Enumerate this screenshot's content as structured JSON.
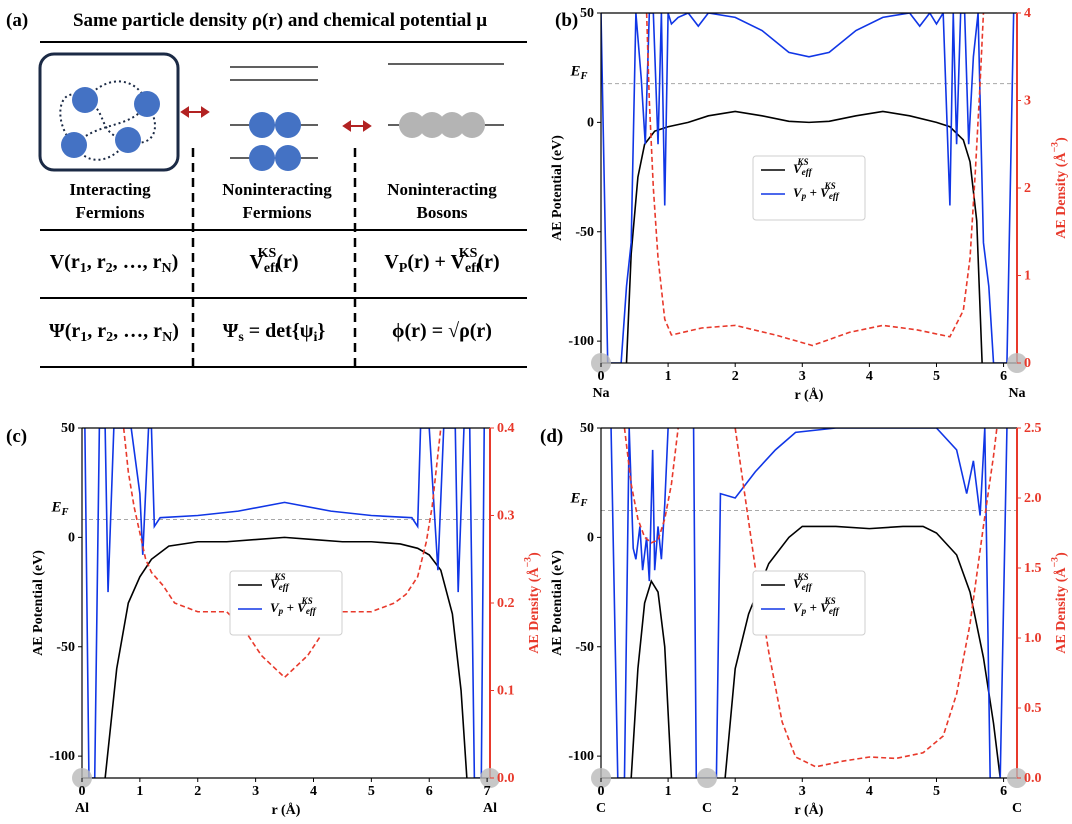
{
  "schematic": {
    "label": "(a)",
    "title": "Same particle density ρ(r) and chemical potential μ",
    "columns": [
      [
        "Interacting",
        "Fermions"
      ],
      [
        "Noninteracting",
        "Fermions"
      ],
      [
        "Noninteracting",
        "Bosons"
      ]
    ],
    "rows": [
      [
        "V(r_{1}, r_{2}, …, r_{N})",
        "V_{eff}^{KS}(r)",
        "V_{P}(r) + V_{eff}^{KS}(r)"
      ],
      [
        "Ψ(r_{1}, r_{2}, …, r_{N})",
        "Ψ_{s} = det{ψ_{i}}",
        "ϕ(r) = √ρ(r)"
      ]
    ]
  },
  "chart_data": [
    {
      "type": "line",
      "label": "(b)",
      "xlabel": "r (Å)",
      "ylabel": "AE Potential (eV)",
      "y2label": "AE Density (Å^{−3})",
      "xlim": [
        0,
        6.2
      ],
      "xticks": [
        0,
        1,
        2,
        3,
        4,
        5,
        6
      ],
      "ylim": [
        -110,
        50
      ],
      "yticks": [
        -100,
        -50,
        0,
        50
      ],
      "y2lim": [
        0,
        4
      ],
      "y2ticks": [
        0,
        1,
        2,
        3,
        4
      ],
      "y2color": "#e8392b",
      "fermi_level": {
        "label": "E_{F}",
        "value": 17.7
      },
      "atoms": [
        {
          "label": "Na",
          "x": 0
        },
        {
          "label": "Na",
          "x": 6.2
        }
      ],
      "legend": "center",
      "series": [
        {
          "name": "V_{eff}^{KS}",
          "color": "#000000",
          "x": [
            0.38,
            0.45,
            0.55,
            0.65,
            0.8,
            1.0,
            1.3,
            1.6,
            2.0,
            2.4,
            2.8,
            3.1,
            3.4,
            3.8,
            4.2,
            4.6,
            5.0,
            5.2,
            5.4,
            5.5,
            5.6,
            5.68
          ],
          "values": [
            -110,
            -60,
            -25,
            -10,
            -4,
            -2,
            0,
            3,
            5,
            3,
            0.5,
            0,
            0.5,
            3,
            5,
            3,
            0,
            -2,
            -8,
            -18,
            -45,
            -110
          ]
        },
        {
          "name": "V_{p} + V_{eff}^{KS}",
          "color": "#1036e6",
          "x": [
            0,
            0.1,
            0.3,
            0.38,
            0.45,
            0.52,
            0.6,
            0.66,
            0.72,
            0.78,
            0.85,
            0.9,
            0.95,
            1.0,
            1.05,
            1.15,
            1.3,
            1.45,
            1.6,
            2.0,
            2.4,
            2.8,
            3.1,
            3.4,
            3.8,
            4.2,
            4.6,
            4.75,
            4.9,
            5.0,
            5.1,
            5.2,
            5.25,
            5.3,
            5.36,
            5.42,
            5.48,
            5.55,
            5.62,
            5.7,
            5.78,
            5.85,
            6.05,
            6.15
          ],
          "values": [
            50,
            -110,
            -110,
            -75,
            -55,
            50,
            20,
            -10,
            50,
            50,
            -10,
            50,
            -38,
            50,
            45,
            48,
            50,
            44,
            50,
            48,
            42,
            32,
            30,
            32,
            42,
            48,
            50,
            44,
            50,
            45,
            50,
            -38,
            50,
            -10,
            50,
            50,
            -10,
            30,
            50,
            -55,
            -75,
            -110,
            -110,
            50
          ]
        },
        {
          "color": "#e8392b",
          "axis": "y2",
          "dash": true,
          "x": [
            0.68,
            0.72,
            0.78,
            0.85,
            0.95,
            1.05,
            1.5,
            2.0,
            2.6,
            3.15,
            3.7,
            4.2,
            4.7,
            5.2,
            5.4,
            5.5,
            5.58,
            5.65,
            5.7
          ],
          "values": [
            4,
            3,
            2,
            1.2,
            0.5,
            0.32,
            0.4,
            0.43,
            0.32,
            0.2,
            0.35,
            0.43,
            0.38,
            0.3,
            0.6,
            1.2,
            2.2,
            3.2,
            4
          ]
        }
      ]
    },
    {
      "type": "line",
      "label": "(c)",
      "xlabel": "r (Å)",
      "ylabel": "AE Potential (eV)",
      "y2label": "AE Density (Å^{−3})",
      "xlim": [
        0,
        7.05
      ],
      "xticks": [
        0,
        1,
        2,
        3,
        4,
        5,
        6,
        7
      ],
      "ylim": [
        -110,
        50
      ],
      "yticks": [
        -100,
        -50,
        0,
        50
      ],
      "y2lim": [
        0,
        0.4
      ],
      "y2ticks": [
        {
          "value": 0,
          "label": "0.0"
        },
        {
          "value": 0.1,
          "label": "0.1"
        },
        {
          "value": 0.2,
          "label": "0.2"
        },
        {
          "value": 0.3,
          "label": "0.3"
        },
        {
          "value": 0.4,
          "label": "0.4"
        }
      ],
      "y2color": "#e8392b",
      "fermi_level": {
        "label": "E_{F}",
        "value": 8.2
      },
      "atoms": [
        {
          "label": "Al",
          "x": 0
        },
        {
          "label": "Al",
          "x": 7.05
        }
      ],
      "legend": "center",
      "series": [
        {
          "name": "V_{eff}^{KS}",
          "color": "#000000",
          "x": [
            0.4,
            0.6,
            0.8,
            1.0,
            1.2,
            1.5,
            2.0,
            2.5,
            3.0,
            3.5,
            4.0,
            4.5,
            5.0,
            5.5,
            5.8,
            6.0,
            6.2,
            6.4,
            6.55,
            6.65
          ],
          "values": [
            -110,
            -60,
            -30,
            -18,
            -10,
            -4,
            -2,
            -2,
            -1,
            0,
            -1,
            -2,
            -2,
            -3,
            -5,
            -8,
            -15,
            -35,
            -70,
            -110
          ]
        },
        {
          "name": "V_{p} + V_{eff}^{KS}",
          "color": "#1036e6",
          "x": [
            0.05,
            0.12,
            0.22,
            0.3,
            0.4,
            0.45,
            0.55,
            0.75,
            0.85,
            1.0,
            1.05,
            1.15,
            1.2,
            1.25,
            1.35,
            2.0,
            2.7,
            3.5,
            4.3,
            5.0,
            5.7,
            5.8,
            5.85,
            6.0,
            6.15,
            6.25,
            6.45,
            6.5,
            6.6,
            6.7,
            6.78,
            6.9,
            6.95
          ],
          "values": [
            50,
            -110,
            -110,
            50,
            50,
            -25,
            50,
            50,
            50,
            20,
            -8,
            50,
            50,
            5,
            9,
            10,
            12,
            16,
            12,
            10,
            9,
            5,
            50,
            50,
            -15,
            50,
            50,
            -25,
            50,
            50,
            -110,
            -110,
            50
          ]
        },
        {
          "color": "#e8392b",
          "axis": "y2",
          "dash": true,
          "x": [
            0.72,
            0.8,
            0.9,
            1.0,
            1.1,
            1.2,
            1.4,
            1.6,
            2.0,
            2.5,
            2.8,
            3.1,
            3.5,
            3.9,
            4.2,
            4.5,
            5.0,
            5.4,
            5.6,
            5.8,
            5.95,
            6.05,
            6.15,
            6.2
          ],
          "values": [
            0.4,
            0.35,
            0.31,
            0.28,
            0.25,
            0.235,
            0.22,
            0.2,
            0.19,
            0.19,
            0.17,
            0.14,
            0.115,
            0.14,
            0.17,
            0.19,
            0.19,
            0.2,
            0.21,
            0.23,
            0.27,
            0.31,
            0.37,
            0.4
          ]
        }
      ]
    },
    {
      "type": "line",
      "label": "(d)",
      "xlabel": "r (Å)",
      "ylabel": "AE Potential (eV)",
      "y2label": "AE Density (Å^{−3})",
      "xlim": [
        0,
        6.2
      ],
      "xticks": [
        0,
        1,
        2,
        3,
        4,
        5,
        6
      ],
      "ylim": [
        -110,
        50
      ],
      "yticks": [
        -100,
        -50,
        0,
        50
      ],
      "y2lim": [
        0,
        2.5
      ],
      "y2ticks": [
        {
          "value": 0,
          "label": "0.0"
        },
        {
          "value": 0.5,
          "label": "0.5"
        },
        {
          "value": 1,
          "label": "1.0"
        },
        {
          "value": 1.5,
          "label": "1.5"
        },
        {
          "value": 2,
          "label": "2.0"
        },
        {
          "value": 2.5,
          "label": "2.5"
        }
      ],
      "y2color": "#e8392b",
      "fermi_level": {
        "label": "E_{F}",
        "value": 12.3
      },
      "atoms": [
        {
          "label": "C",
          "x": 0
        },
        {
          "label": "C",
          "x": 1.58
        },
        {
          "label": "C",
          "x": 6.2
        }
      ],
      "legend": "center",
      "series": [
        {
          "name": "V_{eff}^{KS}",
          "color": "#000000",
          "x": [
            0.45,
            0.55,
            0.65,
            0.75,
            0.85,
            0.95,
            1.05,
            1.45,
            1.85,
            2.0,
            2.2,
            2.5,
            2.8,
            3.0,
            3.5,
            4.0,
            4.5,
            4.8,
            5.0,
            5.3,
            5.5,
            5.7,
            5.85,
            5.95
          ],
          "values": [
            -110,
            -60,
            -30,
            -20,
            -25,
            -50,
            -110,
            null,
            -110,
            -60,
            -35,
            -12,
            0,
            5,
            5,
            4,
            5,
            5,
            2,
            -8,
            -25,
            -55,
            -85,
            -110
          ]
        },
        {
          "name": "V_{p} + V_{eff}^{KS}",
          "color": "#1036e6",
          "x": [
            0.15,
            0.25,
            0.35,
            0.42,
            0.48,
            0.52,
            0.58,
            0.62,
            0.68,
            0.72,
            0.77,
            0.8,
            0.85,
            0.9,
            0.95,
            1.0,
            1.2,
            1.38,
            1.42,
            1.72,
            1.78,
            2.0,
            2.3,
            2.6,
            2.9,
            3.5,
            4.0,
            5.0,
            5.3,
            5.45,
            5.55,
            5.65,
            5.72,
            5.8,
            5.95,
            6.05
          ],
          "values": [
            50,
            -110,
            -110,
            50,
            -5,
            -10,
            5,
            -15,
            0,
            -20,
            40,
            -15,
            5,
            -10,
            15,
            50,
            null,
            50,
            -110,
            -110,
            20,
            18,
            30,
            40,
            48,
            50,
            50,
            50,
            40,
            20,
            35,
            10,
            50,
            -110,
            -110,
            50
          ]
        },
        {
          "color": "#e8392b",
          "axis": "y2",
          "dash": true,
          "x": [
            0.35,
            0.45,
            0.55,
            0.65,
            0.75,
            0.85,
            0.95,
            1.05,
            1.15,
            1.5,
            2.0,
            2.15,
            2.3,
            2.5,
            2.7,
            2.9,
            3.2,
            3.6,
            4.0,
            4.4,
            4.8,
            5.1,
            5.3,
            5.5,
            5.7,
            5.85,
            5.9
          ],
          "values": [
            2.5,
            2.1,
            1.85,
            1.72,
            1.68,
            1.7,
            1.85,
            2.1,
            2.5,
            null,
            2.5,
            2.0,
            1.5,
            0.9,
            0.4,
            0.15,
            0.08,
            0.12,
            0.15,
            0.14,
            0.18,
            0.3,
            0.6,
            1.1,
            1.8,
            2.3,
            2.5
          ]
        }
      ]
    }
  ]
}
